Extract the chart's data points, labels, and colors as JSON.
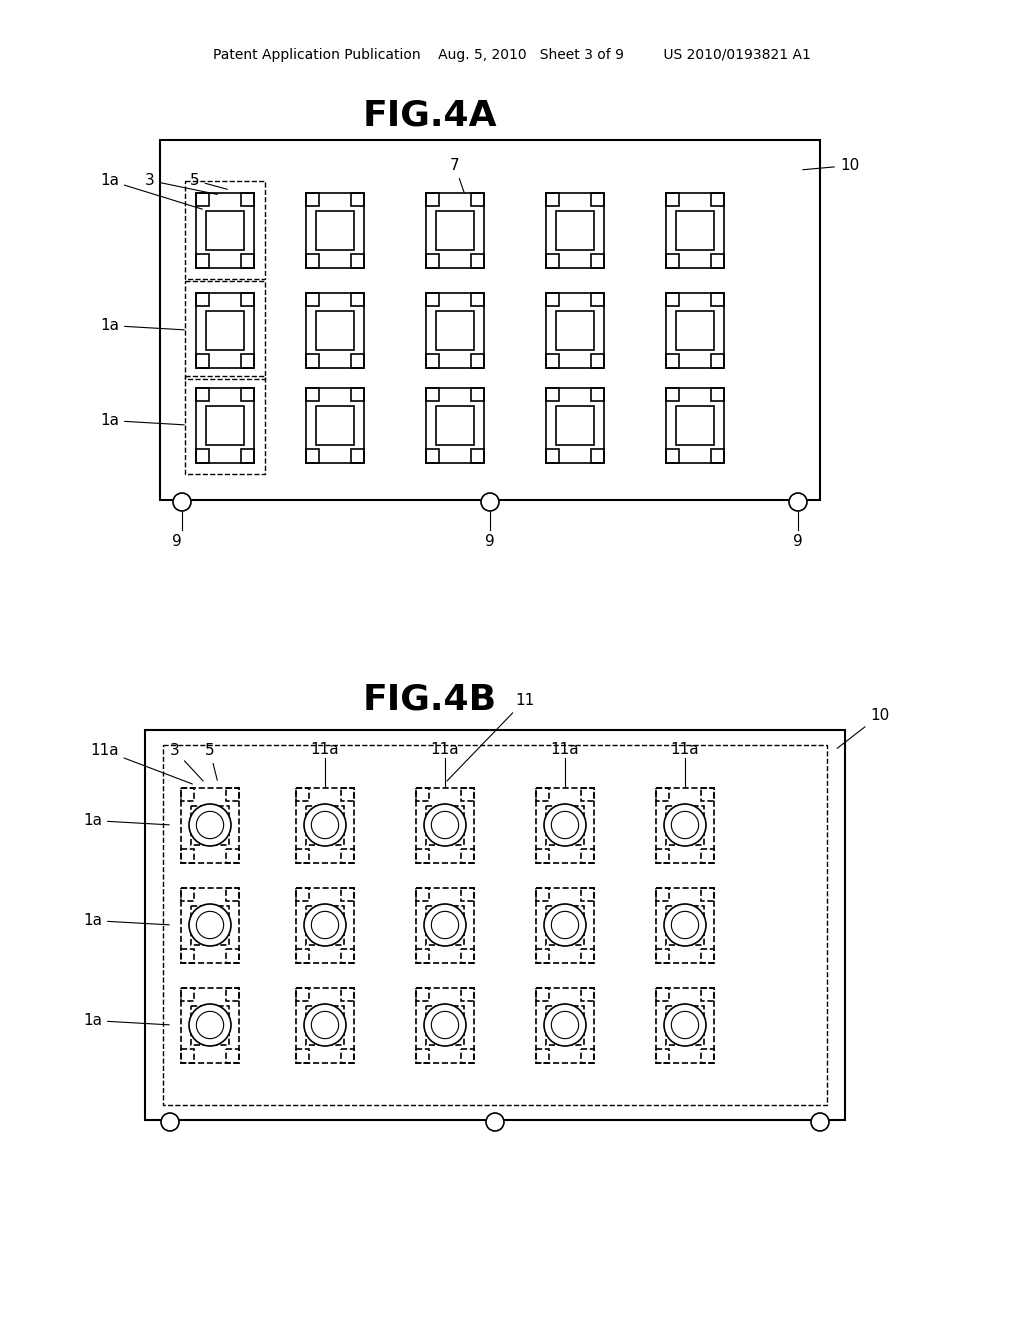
{
  "bg_color": "#ffffff",
  "line_color": "#000000",
  "header_text": "Patent Application Publication    Aug. 5, 2010   Sheet 3 of 9         US 2010/0193821 A1",
  "fig4a_title": "FIG.4A",
  "fig4b_title": "FIG.4B",
  "fig4a_labels": {
    "1a_left": "1a",
    "3": "3",
    "5": "5",
    "7": "7",
    "10": "10",
    "1a_mid": "1a",
    "1a_bot": "1a",
    "9_left": "9",
    "9_mid": "9",
    "9_right": "9"
  },
  "fig4b_labels": {
    "11a_top": "11a",
    "3": "3",
    "5": "5",
    "11a_2": "11a",
    "11a_3": "11a",
    "11a_4": "11a",
    "11a_5": "11a",
    "11": "11",
    "10": "10",
    "1a_top": "1a",
    "1a_mid": "1a",
    "1a_bot": "1a"
  }
}
